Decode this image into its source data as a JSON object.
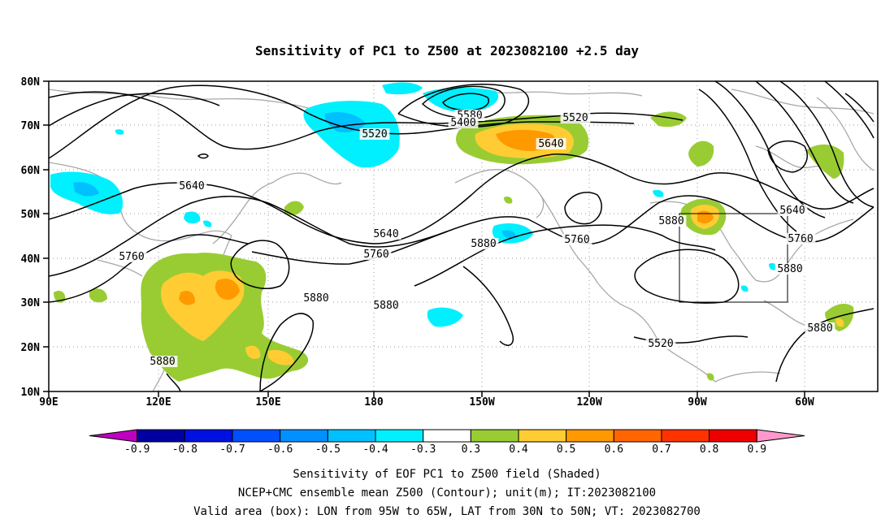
{
  "title": "Sensitivity of PC1 to Z500 at 2023082100 +2.5 day",
  "map": {
    "lon_ticks": [
      "90E",
      "120E",
      "150E",
      "180",
      "150W",
      "120W",
      "90W",
      "60W"
    ],
    "lat_ticks": [
      "80N",
      "70N",
      "60N",
      "50N",
      "40N",
      "30N",
      "20N",
      "10N"
    ],
    "lon_range_deg_east": [
      90,
      310
    ],
    "lat_range_deg_north": [
      10,
      80
    ],
    "gridlines": "dotted",
    "valid_box": {
      "lon_west": "95W",
      "lon_east": "65W",
      "lat_south": "30N",
      "lat_north": "50N"
    }
  },
  "contours": {
    "variable": "Z500",
    "unit": "m",
    "labels": [
      {
        "text": "5520"
      },
      {
        "text": "5580"
      },
      {
        "text": "5400"
      },
      {
        "text": "5520"
      },
      {
        "text": "5640"
      },
      {
        "text": "5640"
      },
      {
        "text": "5640"
      },
      {
        "text": "5760"
      },
      {
        "text": "5760"
      },
      {
        "text": "5760"
      },
      {
        "text": "5880"
      },
      {
        "text": "5880"
      },
      {
        "text": "5880"
      },
      {
        "text": "5880"
      },
      {
        "text": "5880"
      },
      {
        "text": "5880"
      },
      {
        "text": "5520"
      },
      {
        "text": "5640"
      },
      {
        "text": "5760"
      },
      {
        "text": "5880"
      }
    ]
  },
  "colorbar": {
    "labels": [
      "-0.9",
      "-0.8",
      "-0.7",
      "-0.6",
      "-0.5",
      "-0.4",
      "-0.3",
      "0.3",
      "0.4",
      "0.5",
      "0.6",
      "0.7",
      "0.8",
      "0.9"
    ],
    "colors": [
      "#c000c0",
      "#0000a0",
      "#0010e0",
      "#0050ff",
      "#0090ff",
      "#00c0ff",
      "#00f0ff",
      "#ffffff",
      "#99cc33",
      "#ffcc33",
      "#ff9900",
      "#ff6600",
      "#ff3300",
      "#ee0000",
      "#ff99cc"
    ]
  },
  "captions": [
    "Sensitivity of EOF PC1 to Z500 field (Shaded)",
    "NCEP+CMC ensemble mean Z500 (Contour); unit(m); IT:2023082100",
    "Valid area (box): LON from 95W to 65W, LAT from 30N to 50N; VT: 2023082700"
  ]
}
